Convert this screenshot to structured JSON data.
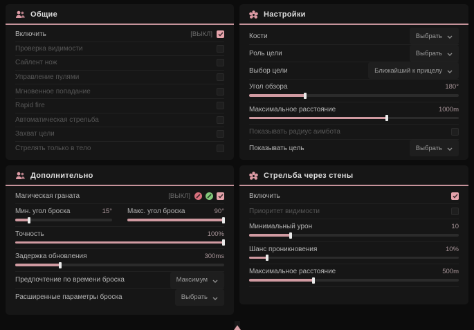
{
  "app": {
    "accent": "#d09aa1",
    "background": "#0c0c0c"
  },
  "panels": [
    {
      "id": "general",
      "title": "Общие",
      "icon": "users",
      "rows": [
        {
          "type": "check",
          "label": "Включить",
          "suffix": "[ВЫКЛ]",
          "checked": true,
          "dim": false
        },
        {
          "type": "check",
          "label": "Проверка видимости",
          "checked": false,
          "dim": true
        },
        {
          "type": "check",
          "label": "Сайлент нож",
          "checked": false,
          "dim": true
        },
        {
          "type": "check",
          "label": "Управление пулями",
          "checked": false,
          "dim": true
        },
        {
          "type": "check",
          "label": "Мгновенное попадание",
          "checked": false,
          "dim": true
        },
        {
          "type": "check",
          "label": "Rapid fire",
          "checked": false,
          "dim": true
        },
        {
          "type": "check",
          "label": "Автоматическая стрельба",
          "checked": false,
          "dim": true
        },
        {
          "type": "check",
          "label": "Захват цели",
          "checked": false,
          "dim": true
        },
        {
          "type": "check",
          "label": "Стрелять только в тело",
          "checked": false,
          "dim": true
        }
      ]
    },
    {
      "id": "settings",
      "title": "Настройки",
      "icon": "flower",
      "rows": [
        {
          "type": "select",
          "label": "Кости",
          "value": "Выбрать"
        },
        {
          "type": "select",
          "label": "Роль цели",
          "value": "Выбрать"
        },
        {
          "type": "select",
          "label": "Выбор цели",
          "value": "Ближайший к прицелу"
        },
        {
          "type": "slider",
          "label": "Угол обзора",
          "value": "180°",
          "fill": 27
        },
        {
          "type": "slider",
          "label": "Максимальное расстояние",
          "value": "1000m",
          "fill": 66
        },
        {
          "type": "check",
          "label": "Показывать радиус аимбота",
          "checked": false,
          "dim": true
        },
        {
          "type": "select",
          "label": "Показывать цель",
          "value": "Выбрать"
        }
      ]
    },
    {
      "id": "additional",
      "title": "Дополнительно",
      "icon": "users",
      "rows": [
        {
          "type": "check",
          "label": "Магическая граната",
          "suffix": "[ВЫКЛ]",
          "checked": true,
          "dim": false,
          "badges": [
            "red-badge",
            "green-badge"
          ]
        },
        {
          "type": "slider2",
          "items": [
            {
              "label": "Мин. угол броска",
              "value": "15°",
              "fill": 15
            },
            {
              "label": "Макс. угол броска",
              "value": "90°",
              "fill": 100
            }
          ]
        },
        {
          "type": "slider",
          "label": "Точность",
          "value": "100%",
          "fill": 100
        },
        {
          "type": "slider",
          "label": "Задержка обновления",
          "value": "300ms",
          "fill": 22
        },
        {
          "type": "select",
          "label": "Предпочтение по времени броска",
          "value": "Максимум"
        },
        {
          "type": "select",
          "label": "Расширенные параметры броска",
          "value": "Выбрать"
        }
      ]
    },
    {
      "id": "wallbang",
      "title": "Стрельба через стены",
      "icon": "flower",
      "rows": [
        {
          "type": "check",
          "label": "Включить",
          "checked": true,
          "dim": false
        },
        {
          "type": "check",
          "label": "Приоритет видимости",
          "checked": false,
          "dim": true
        },
        {
          "type": "slider",
          "label": "Минимальный урон",
          "value": "10",
          "fill": 20
        },
        {
          "type": "slider",
          "label": "Шанс проникновения",
          "value": "10%",
          "fill": 9
        },
        {
          "type": "slider",
          "label": "Максимальное расстояние",
          "value": "500m",
          "fill": 31
        }
      ]
    }
  ],
  "footer": {
    "indicator": "menu-handle"
  }
}
